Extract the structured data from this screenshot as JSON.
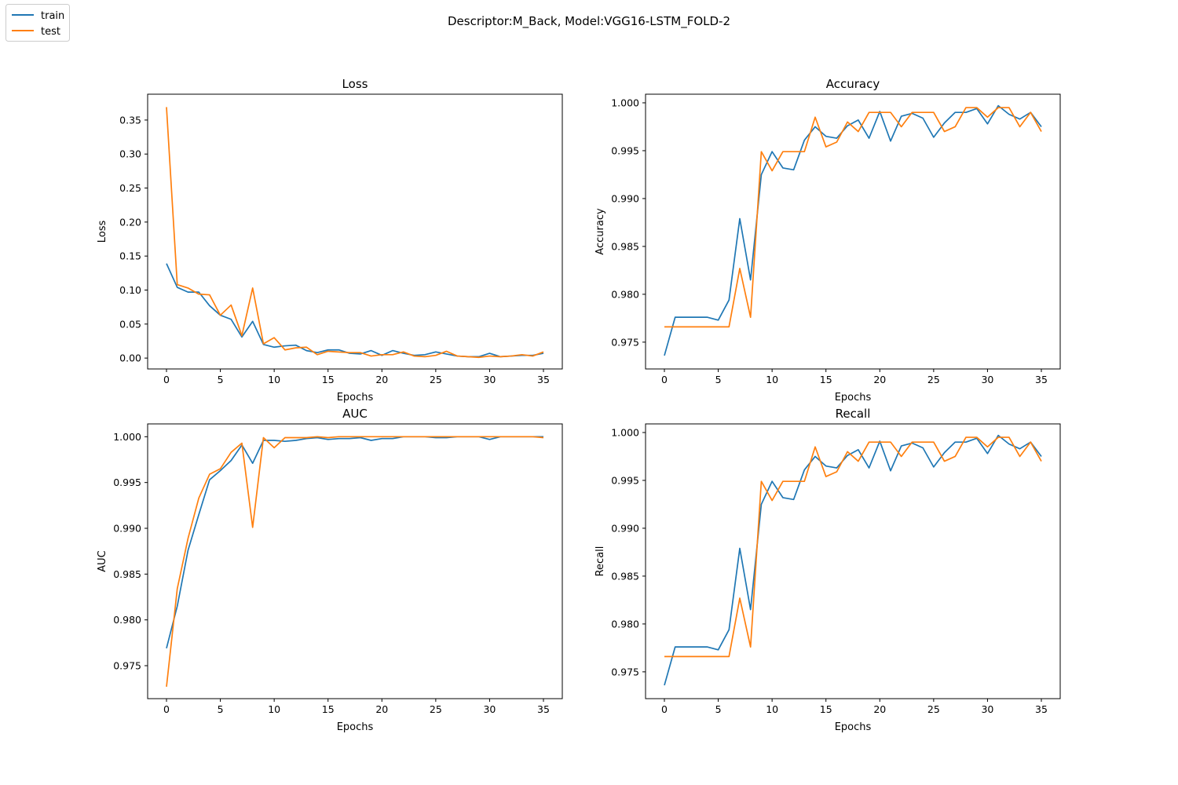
{
  "figure": {
    "suptitle": "Descriptor:M_Back, Model:VGG16-LSTM_FOLD-2",
    "legend": {
      "placement": "top-left",
      "entries": [
        {
          "label": "train",
          "color": "#1f77b4"
        },
        {
          "label": "test",
          "color": "#ff7f0e"
        }
      ]
    }
  },
  "chart_data": [
    {
      "type": "line",
      "title": "Loss",
      "xlabel": "Epochs",
      "ylabel": "Loss",
      "xlim": [
        -1.75,
        36.75
      ],
      "ylim": [
        -0.016,
        0.388
      ],
      "xticks": [
        0,
        5,
        10,
        15,
        20,
        25,
        30,
        35
      ],
      "xtick_labels": [
        "0",
        "5",
        "10",
        "15",
        "20",
        "25",
        "30",
        "35"
      ],
      "yticks": [
        0.0,
        0.05,
        0.1,
        0.15,
        0.2,
        0.25,
        0.3,
        0.35
      ],
      "ytick_labels": [
        "0.00",
        "0.05",
        "0.10",
        "0.15",
        "0.20",
        "0.25",
        "0.30",
        "0.35"
      ],
      "grid": false,
      "x": [
        0,
        1,
        2,
        3,
        4,
        5,
        6,
        7,
        8,
        9,
        10,
        11,
        12,
        13,
        14,
        15,
        16,
        17,
        18,
        19,
        20,
        21,
        22,
        23,
        24,
        25,
        26,
        27,
        28,
        29,
        30,
        31,
        32,
        33,
        34,
        35
      ],
      "series": [
        {
          "name": "train",
          "color": "#1f77b4",
          "values": [
            0.139,
            0.104,
            0.097,
            0.097,
            0.077,
            0.063,
            0.057,
            0.031,
            0.054,
            0.02,
            0.016,
            0.018,
            0.019,
            0.011,
            0.008,
            0.012,
            0.012,
            0.007,
            0.006,
            0.011,
            0.004,
            0.011,
            0.007,
            0.004,
            0.005,
            0.009,
            0.006,
            0.003,
            0.002,
            0.002,
            0.007,
            0.002,
            0.003,
            0.004,
            0.004,
            0.007
          ]
        },
        {
          "name": "test",
          "color": "#ff7f0e",
          "values": [
            0.369,
            0.108,
            0.103,
            0.094,
            0.093,
            0.063,
            0.078,
            0.033,
            0.103,
            0.021,
            0.03,
            0.012,
            0.015,
            0.016,
            0.005,
            0.01,
            0.009,
            0.008,
            0.008,
            0.003,
            0.005,
            0.005,
            0.009,
            0.003,
            0.002,
            0.004,
            0.01,
            0.003,
            0.002,
            0.001,
            0.003,
            0.002,
            0.003,
            0.005,
            0.003,
            0.009
          ]
        }
      ]
    },
    {
      "type": "line",
      "title": "Accuracy",
      "xlabel": "Epochs",
      "ylabel": "Accuracy",
      "xlim": [
        -1.75,
        36.75
      ],
      "ylim": [
        0.9722,
        1.0009
      ],
      "xticks": [
        0,
        5,
        10,
        15,
        20,
        25,
        30,
        35
      ],
      "xtick_labels": [
        "0",
        "5",
        "10",
        "15",
        "20",
        "25",
        "30",
        "35"
      ],
      "yticks": [
        0.975,
        0.98,
        0.985,
        0.99,
        0.995,
        1.0
      ],
      "ytick_labels": [
        "0.975",
        "0.980",
        "0.985",
        "0.990",
        "0.995",
        "1.000"
      ],
      "grid": false,
      "x": [
        0,
        1,
        2,
        3,
        4,
        5,
        6,
        7,
        8,
        9,
        10,
        11,
        12,
        13,
        14,
        15,
        16,
        17,
        18,
        19,
        20,
        21,
        22,
        23,
        24,
        25,
        26,
        27,
        28,
        29,
        30,
        31,
        32,
        33,
        34,
        35
      ],
      "series": [
        {
          "name": "train",
          "color": "#1f77b4",
          "values": [
            0.9736,
            0.9776,
            0.9776,
            0.9776,
            0.9776,
            0.9773,
            0.9794,
            0.9879,
            0.9815,
            0.9925,
            0.9949,
            0.9932,
            0.993,
            0.9961,
            0.9975,
            0.9965,
            0.9963,
            0.9976,
            0.9982,
            0.9963,
            0.9991,
            0.996,
            0.9986,
            0.9989,
            0.9984,
            0.9964,
            0.9979,
            0.999,
            0.999,
            0.9994,
            0.9978,
            0.9997,
            0.9988,
            0.9983,
            0.999,
            0.9975
          ]
        },
        {
          "name": "test",
          "color": "#ff7f0e",
          "values": [
            0.9766,
            0.9766,
            0.9766,
            0.9766,
            0.9766,
            0.9766,
            0.9766,
            0.9827,
            0.9776,
            0.9949,
            0.9929,
            0.9949,
            0.9949,
            0.9949,
            0.9985,
            0.9954,
            0.9959,
            0.998,
            0.997,
            0.999,
            0.999,
            0.999,
            0.9975,
            0.999,
            0.999,
            0.999,
            0.997,
            0.9975,
            0.9995,
            0.9995,
            0.9985,
            0.9995,
            0.9995,
            0.9975,
            0.999,
            0.997
          ]
        }
      ]
    },
    {
      "type": "line",
      "title": "AUC",
      "xlabel": "Epochs",
      "ylabel": "AUC",
      "xlim": [
        -1.75,
        36.75
      ],
      "ylim": [
        0.9714,
        1.0014
      ],
      "xticks": [
        0,
        5,
        10,
        15,
        20,
        25,
        30,
        35
      ],
      "xtick_labels": [
        "0",
        "5",
        "10",
        "15",
        "20",
        "25",
        "30",
        "35"
      ],
      "yticks": [
        0.975,
        0.98,
        0.985,
        0.99,
        0.995,
        1.0
      ],
      "ytick_labels": [
        "0.975",
        "0.980",
        "0.985",
        "0.990",
        "0.995",
        "1.000"
      ],
      "grid": false,
      "x": [
        0,
        1,
        2,
        3,
        4,
        5,
        6,
        7,
        8,
        9,
        10,
        11,
        12,
        13,
        14,
        15,
        16,
        17,
        18,
        19,
        20,
        21,
        22,
        23,
        24,
        25,
        26,
        27,
        28,
        29,
        30,
        31,
        32,
        33,
        34,
        35
      ],
      "series": [
        {
          "name": "train",
          "color": "#1f77b4",
          "values": [
            0.9769,
            0.9815,
            0.9876,
            0.9915,
            0.9953,
            0.9963,
            0.9974,
            0.9991,
            0.9971,
            0.9996,
            0.9996,
            0.9995,
            0.9996,
            0.9998,
            0.9999,
            0.9997,
            0.9998,
            0.9998,
            0.9999,
            0.9996,
            0.9998,
            0.9998,
            1.0,
            1.0,
            1.0,
            0.9999,
            0.9999,
            1.0,
            1.0,
            1.0,
            0.9997,
            1.0,
            1.0,
            1.0,
            1.0,
            1.0
          ]
        },
        {
          "name": "test",
          "color": "#ff7f0e",
          "values": [
            0.9727,
            0.9834,
            0.9889,
            0.9933,
            0.9959,
            0.9965,
            0.9983,
            0.9993,
            0.9901,
            0.9999,
            0.9988,
            0.9999,
            0.9999,
            0.9999,
            1.0,
            0.9999,
            1.0,
            1.0,
            1.0,
            1.0,
            1.0,
            1.0,
            1.0,
            1.0,
            1.0,
            1.0,
            1.0,
            1.0,
            1.0,
            1.0,
            1.0,
            1.0,
            1.0,
            1.0,
            1.0,
            0.9999
          ]
        }
      ]
    },
    {
      "type": "line",
      "title": "Recall",
      "xlabel": "Epochs",
      "ylabel": "Recall",
      "xlim": [
        -1.75,
        36.75
      ],
      "ylim": [
        0.9722,
        1.0009
      ],
      "xticks": [
        0,
        5,
        10,
        15,
        20,
        25,
        30,
        35
      ],
      "xtick_labels": [
        "0",
        "5",
        "10",
        "15",
        "20",
        "25",
        "30",
        "35"
      ],
      "yticks": [
        0.975,
        0.98,
        0.985,
        0.99,
        0.995,
        1.0
      ],
      "ytick_labels": [
        "0.975",
        "0.980",
        "0.985",
        "0.990",
        "0.995",
        "1.000"
      ],
      "grid": false,
      "x": [
        0,
        1,
        2,
        3,
        4,
        5,
        6,
        7,
        8,
        9,
        10,
        11,
        12,
        13,
        14,
        15,
        16,
        17,
        18,
        19,
        20,
        21,
        22,
        23,
        24,
        25,
        26,
        27,
        28,
        29,
        30,
        31,
        32,
        33,
        34,
        35
      ],
      "series": [
        {
          "name": "train",
          "color": "#1f77b4",
          "values": [
            0.9736,
            0.9776,
            0.9776,
            0.9776,
            0.9776,
            0.9773,
            0.9794,
            0.9879,
            0.9815,
            0.9925,
            0.9949,
            0.9932,
            0.993,
            0.9961,
            0.9975,
            0.9965,
            0.9963,
            0.9976,
            0.9982,
            0.9963,
            0.9991,
            0.996,
            0.9986,
            0.9989,
            0.9984,
            0.9964,
            0.9979,
            0.999,
            0.999,
            0.9994,
            0.9978,
            0.9997,
            0.9988,
            0.9983,
            0.999,
            0.9975
          ]
        },
        {
          "name": "test",
          "color": "#ff7f0e",
          "values": [
            0.9766,
            0.9766,
            0.9766,
            0.9766,
            0.9766,
            0.9766,
            0.9766,
            0.9827,
            0.9776,
            0.9949,
            0.9929,
            0.9949,
            0.9949,
            0.9949,
            0.9985,
            0.9954,
            0.9959,
            0.998,
            0.997,
            0.999,
            0.999,
            0.999,
            0.9975,
            0.999,
            0.999,
            0.999,
            0.997,
            0.9975,
            0.9995,
            0.9995,
            0.9985,
            0.9995,
            0.9995,
            0.9975,
            0.999,
            0.997
          ]
        }
      ]
    }
  ]
}
